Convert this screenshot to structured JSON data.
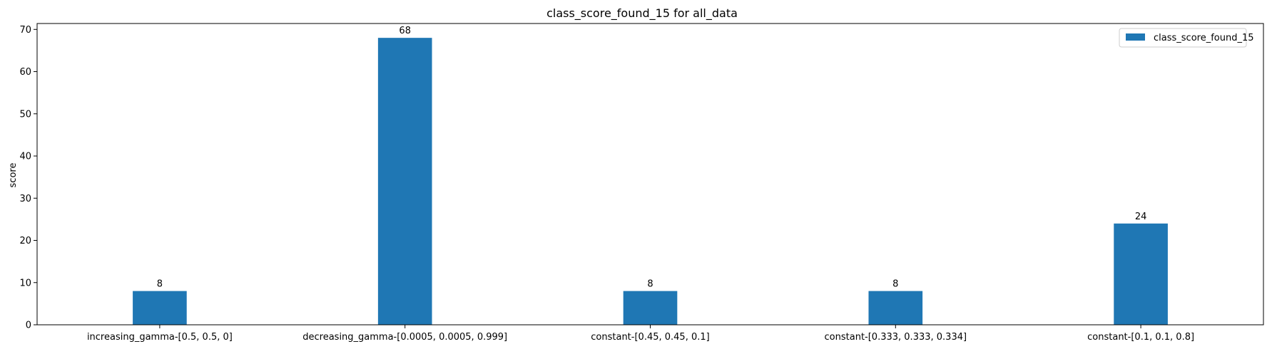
{
  "chart_data": {
    "type": "bar",
    "title": "class_score_found_15 for all_data",
    "xlabel": "",
    "ylabel": "score",
    "categories": [
      "increasing_gamma-[0.5, 0.5, 0]",
      "decreasing_gamma-[0.0005, 0.0005, 0.999]",
      "constant-[0.45, 0.45, 0.1]",
      "constant-[0.333, 0.333, 0.334]",
      "constant-[0.1, 0.1, 0.8]"
    ],
    "series": [
      {
        "name": "class_score_found_15",
        "values": [
          8,
          68,
          8,
          8,
          24
        ],
        "color": "#1f77b4"
      }
    ],
    "data_labels": [
      "8",
      "68",
      "8",
      "8",
      "24"
    ],
    "ylim": [
      0,
      71.4
    ],
    "yticks": [
      0,
      10,
      20,
      30,
      40,
      50,
      60,
      70
    ],
    "grid": false,
    "legend_position": "top-right"
  }
}
